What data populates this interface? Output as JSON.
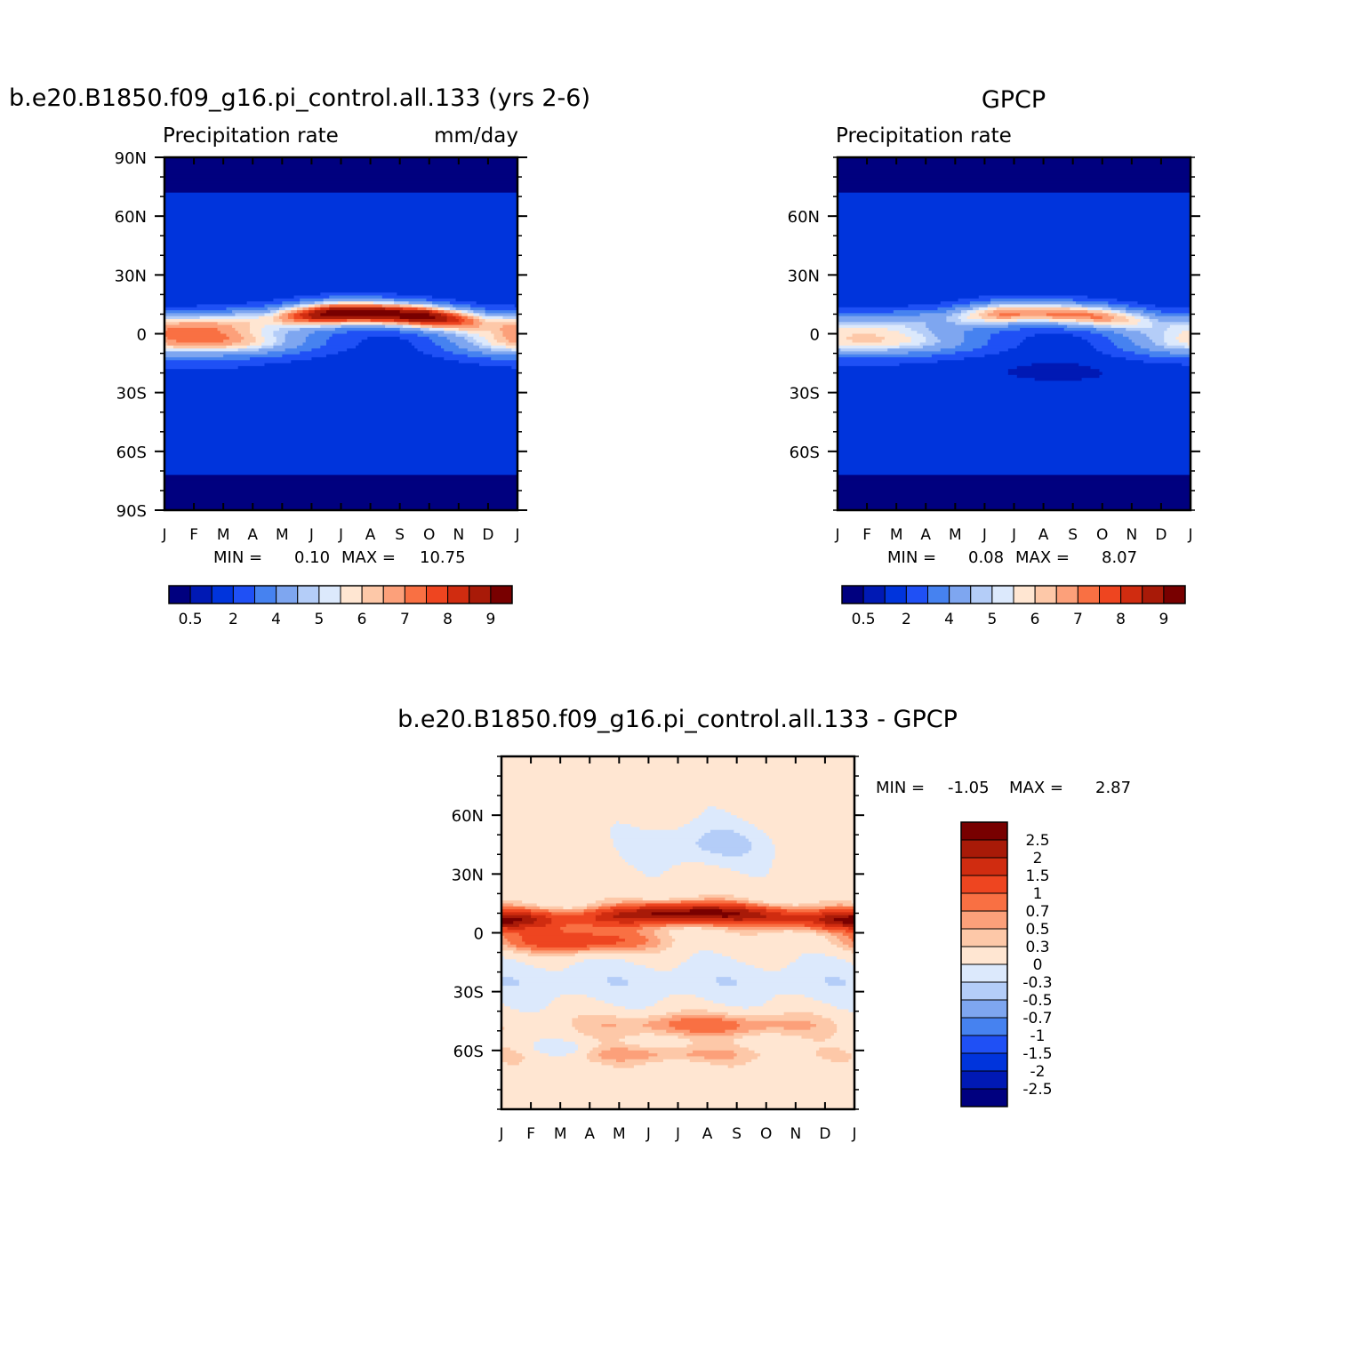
{
  "chart_data": [
    {
      "type": "heatmap",
      "title": "b.e20.B1850.f09_g16.pi_control.all.133 (yrs 2-6)",
      "left_label": "Precipitation rate",
      "right_label": "mm/day",
      "x_tick_labels": [
        "J",
        "F",
        "M",
        "A",
        "M",
        "J",
        "J",
        "A",
        "S",
        "O",
        "N",
        "D",
        "J"
      ],
      "y_tick_labels": [
        "90N",
        "60N",
        "30N",
        "0",
        "30S",
        "60S",
        "90S"
      ],
      "y_tick_values": [
        90,
        60,
        30,
        0,
        -30,
        -60,
        -90
      ],
      "ylim": [
        -90,
        90
      ],
      "min_label": "MIN =",
      "min_value": "0.10",
      "max_label": "MAX =",
      "max_value": "10.75",
      "colorbar_labels": [
        "0.5",
        "2",
        "4",
        "5",
        "6",
        "7",
        "8",
        "9"
      ],
      "features": [
        {
          "name": "itcz",
          "lat": 9,
          "peak_month": 7.5,
          "peak_value": 10.75
        },
        {
          "name": "southern_branch",
          "lat": -5,
          "peak_month": 2,
          "peak_value": 6.5
        }
      ]
    },
    {
      "type": "heatmap",
      "title": "GPCP",
      "left_label": "Precipitation rate",
      "right_label": "",
      "x_tick_labels": [
        "J",
        "F",
        "M",
        "A",
        "M",
        "J",
        "J",
        "A",
        "S",
        "O",
        "N",
        "D",
        "J"
      ],
      "y_tick_labels": [
        "60N",
        "30N",
        "0",
        "30S",
        "60S"
      ],
      "y_tick_values": [
        60,
        30,
        0,
        -30,
        -60
      ],
      "ylim": [
        -90,
        90
      ],
      "min_label": "MIN =",
      "min_value": "0.08",
      "max_label": "MAX =",
      "max_value": "8.07",
      "colorbar_labels": [
        "0.5",
        "2",
        "4",
        "5",
        "6",
        "7",
        "8",
        "9"
      ],
      "features": [
        {
          "name": "itcz",
          "lat": 8,
          "peak_month": 7.5,
          "peak_value": 8.07
        },
        {
          "name": "southern_branch",
          "lat": -5,
          "peak_month": 2,
          "peak_value": 5.5
        }
      ]
    },
    {
      "type": "heatmap",
      "title": "b.e20.B1850.f09_g16.pi_control.all.133 - GPCP",
      "x_tick_labels": [
        "J",
        "F",
        "M",
        "A",
        "M",
        "J",
        "J",
        "A",
        "S",
        "O",
        "N",
        "D",
        "J"
      ],
      "y_tick_labels": [
        "60N",
        "30N",
        "0",
        "30S",
        "60S"
      ],
      "y_tick_values": [
        60,
        30,
        0,
        -30,
        -60
      ],
      "ylim": [
        -90,
        90
      ],
      "min_label": "MIN =",
      "min_value": "-1.05",
      "max_label": "MAX =",
      "max_value": "2.87",
      "colorbar_labels": [
        "2.5",
        "2",
        "1.5",
        "1",
        "0.7",
        "0.5",
        "0.3",
        "0",
        "-0.3",
        "-0.5",
        "-0.7",
        "-1",
        "-1.5",
        "-2",
        "-2.5"
      ]
    }
  ],
  "colors": {
    "precip_scale": [
      "#00007f",
      "#0019b4",
      "#0034dc",
      "#1f50f5",
      "#4682f0",
      "#7ea6f0",
      "#b4cdf8",
      "#dce9fc",
      "#ffe6d2",
      "#fdc8a8",
      "#fca07a",
      "#f97043",
      "#ee4520",
      "#d02c10",
      "#a81a08",
      "#780000"
    ],
    "diff_scale": [
      "#00007f",
      "#0019b4",
      "#0034dc",
      "#1f50f5",
      "#4682f0",
      "#7ea6f0",
      "#b4cdf8",
      "#dce9fc",
      "#ffe6d2",
      "#fdc8a8",
      "#fca07a",
      "#f97043",
      "#ee4520",
      "#d02c10",
      "#a81a08",
      "#780000"
    ]
  }
}
